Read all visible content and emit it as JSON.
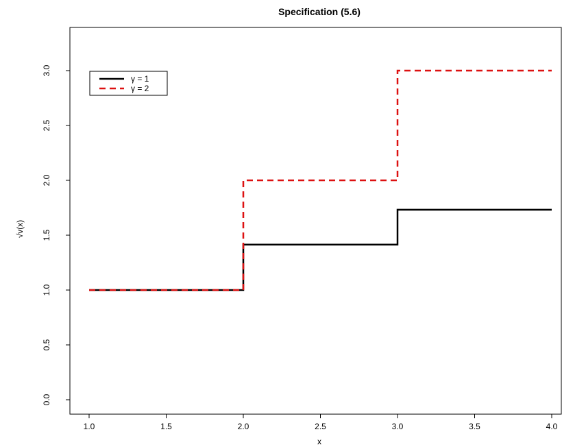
{
  "chart_data": {
    "type": "line",
    "title": "Specification (5.6)",
    "xlabel": "x",
    "ylabel": "√v(x)",
    "xlim": [
      1.0,
      4.0
    ],
    "ylim": [
      0.0,
      3.2
    ],
    "xticks": [
      "1.0",
      "1.5",
      "2.0",
      "2.5",
      "3.0",
      "3.5",
      "4.0"
    ],
    "yticks": [
      "0.0",
      "0.5",
      "1.0",
      "1.5",
      "2.0",
      "2.5",
      "3.0"
    ],
    "grid": false,
    "legend_position": "top-left",
    "series": [
      {
        "name": "γ = 1",
        "color": "#000000",
        "style": "solid",
        "step": true,
        "x": [
          1.0,
          2.0,
          3.0,
          4.0
        ],
        "y": [
          1.0,
          1.414,
          1.732,
          1.732
        ]
      },
      {
        "name": "γ = 2",
        "color": "#dd1111",
        "style": "dashed",
        "step": true,
        "x": [
          1.0,
          2.0,
          3.0,
          4.0
        ],
        "y": [
          1.0,
          2.0,
          3.0,
          3.0
        ]
      }
    ]
  }
}
